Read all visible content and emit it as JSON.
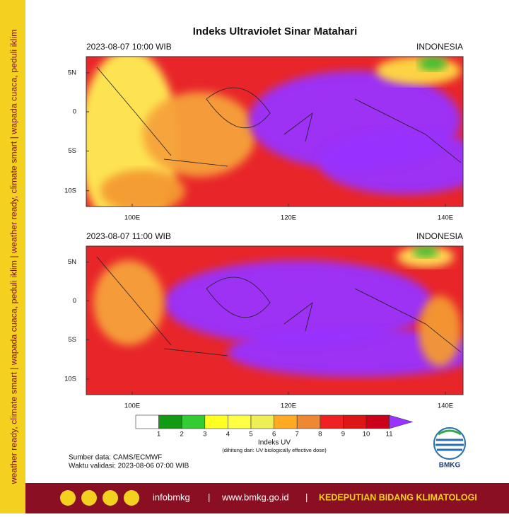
{
  "sidebar": "weather ready, climate smart | wapada cuaca, peduli iklim | weather ready, climate smart | wapada cuaca, peduli iklim",
  "title": "Indeks Ultraviolet Sinar Matahari",
  "panels": [
    {
      "time": "2023-08-07  10:00 WIB",
      "region": "INDONESIA",
      "lat_labels": [
        "5N",
        "0",
        "5S",
        "10S"
      ],
      "lon_labels": [
        "100E",
        "120E",
        "140E"
      ]
    },
    {
      "time": "2023-08-07  11:00 WIB",
      "region": "INDONESIA",
      "lat_labels": [
        "5N",
        "0",
        "5S",
        "10S"
      ],
      "lon_labels": [
        "100E",
        "120E",
        "140E"
      ]
    }
  ],
  "legend": {
    "ticks": [
      1,
      2,
      3,
      4,
      5,
      6,
      7,
      8,
      9,
      10,
      11
    ],
    "colors": [
      "#ffffff",
      "#129a12",
      "#33cc33",
      "#ffff22",
      "#ffff44",
      "#eeee55",
      "#ffaa22",
      "#ee8833",
      "#ee2222",
      "#dd1515",
      "#cc0018",
      "#9933ff"
    ],
    "label": "Indeks UV",
    "note": "(dihitung dari: UV biologically effective dose)"
  },
  "source": "Sumber data: CAMS/ECMWF",
  "validity": "Waktu validasi: 2023-08-06 07:00 WIB",
  "logo": "BMKG",
  "footer": {
    "handle": "infobmkg",
    "site": "www.bmkg.go.id",
    "dept": "KEDEPUTIAN BIDANG KLIMATOLOGI"
  }
}
